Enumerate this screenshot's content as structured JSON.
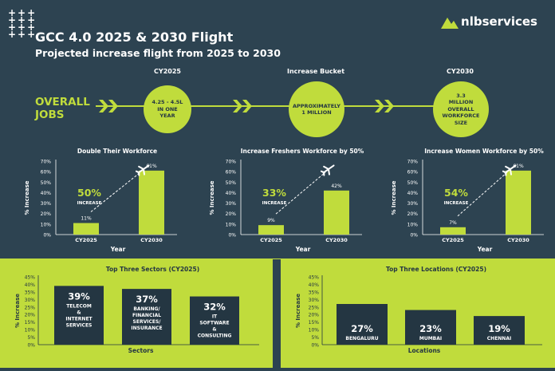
{
  "header": {
    "title": "GCC 4.0 2025 & 2030 Flight",
    "subtitle": "Projected increase flight from 2025 to 2030",
    "logo_text": "nlbservices"
  },
  "overall": {
    "label_line1": "OVERALL",
    "label_line2": "JOBS",
    "columns": [
      "CY2025",
      "Increase Bucket",
      "CY2030"
    ],
    "circles": [
      {
        "lines": [
          "4.25 - 4.5L",
          "IN ONE",
          "YEAR"
        ]
      },
      {
        "lines": [
          "APPROXIMATELY",
          "1 MILLION"
        ]
      },
      {
        "lines": [
          "3.3",
          "MILLION",
          "OVERALL",
          "WORKFORCE",
          "SIZE"
        ]
      }
    ]
  },
  "colors": {
    "background": "#2d4351",
    "accent": "#c0dc3c",
    "dark_text": "#243642"
  },
  "chart_data": [
    {
      "type": "bar",
      "title": "Double Their Workforce",
      "categories": [
        "CY2025",
        "CY2030"
      ],
      "values": [
        11,
        61
      ],
      "value_labels": [
        "11%",
        "61%"
      ],
      "ylabel": "% Increase",
      "xlabel": "Year",
      "ylim": [
        0,
        70
      ],
      "yticks": [
        "0%",
        "10%",
        "20%",
        "30%",
        "40%",
        "50%",
        "60%",
        "70%"
      ],
      "annotation_value": "50%",
      "annotation_text": "INCREASE"
    },
    {
      "type": "bar",
      "title": "Increase Freshers Workforce by 50%",
      "categories": [
        "CY2025",
        "CY2030"
      ],
      "values": [
        9,
        42
      ],
      "value_labels": [
        "9%",
        "42%"
      ],
      "ylabel": "% Increase",
      "xlabel": "Year",
      "ylim": [
        0,
        70
      ],
      "yticks": [
        "0%",
        "10%",
        "20%",
        "30%",
        "40%",
        "50%",
        "60%",
        "70%"
      ],
      "annotation_value": "33%",
      "annotation_text": "INCREASE"
    },
    {
      "type": "bar",
      "title": "Increase Women Workforce by 50%",
      "categories": [
        "CY2025",
        "CY2030"
      ],
      "values": [
        7,
        61
      ],
      "value_labels": [
        "7%",
        "61%"
      ],
      "ylabel": "% Increase",
      "xlabel": "Year",
      "ylim": [
        0,
        70
      ],
      "yticks": [
        "0%",
        "10%",
        "20%",
        "30%",
        "40%",
        "50%",
        "60%",
        "70%"
      ],
      "annotation_value": "54%",
      "annotation_text": "INCREASE"
    },
    {
      "type": "bar",
      "title": "Top Three Sectors (CY2025)",
      "categories": [
        [
          "TELECOM",
          "&",
          "INTERNET",
          "SERVICES"
        ],
        [
          "BANKING/",
          "FINANCIAL",
          "SERVICES/",
          "INSURANCE"
        ],
        [
          "IT",
          "SOFTWARE",
          "&",
          "CONSULTING"
        ]
      ],
      "values": [
        39,
        37,
        32
      ],
      "value_labels": [
        "39%",
        "37%",
        "32%"
      ],
      "ylabel": "% Increase",
      "xlabel": "Sectors",
      "ylim": [
        0,
        45
      ],
      "yticks": [
        "0%",
        "5%",
        "10%",
        "15%",
        "20%",
        "25%",
        "30%",
        "35%",
        "40%",
        "45%"
      ]
    },
    {
      "type": "bar",
      "title": "Top Three Locations (CY2025)",
      "categories": [
        [
          "BENGALURU"
        ],
        [
          "MUMBAI"
        ],
        [
          "CHENNAI"
        ]
      ],
      "values": [
        27,
        23,
        19
      ],
      "value_labels": [
        "27%",
        "23%",
        "19%"
      ],
      "ylabel": "% Increase",
      "xlabel": "Locations",
      "ylim": [
        0,
        45
      ],
      "yticks": [
        "0%",
        "5%",
        "10%",
        "15%",
        "20%",
        "25%",
        "30%",
        "35%",
        "40%",
        "45%"
      ]
    }
  ]
}
